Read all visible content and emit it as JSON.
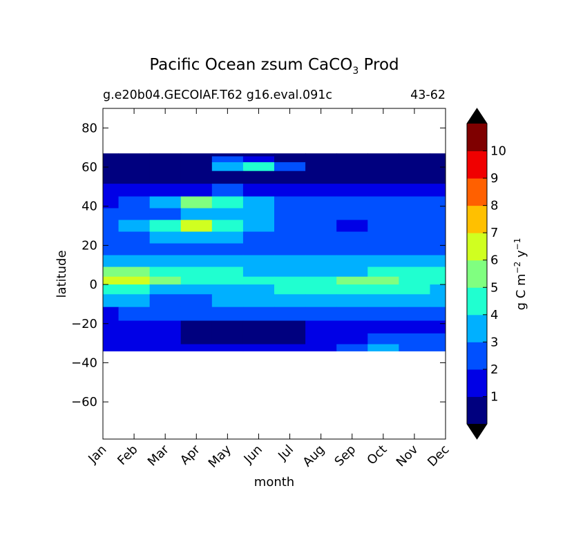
{
  "chart_data": {
    "type": "heatmap",
    "title_main": "Pacific Ocean zsum CaCO",
    "title_sub": "3",
    "title_tail": " Prod",
    "subtitle_left": "g.e20b04.GECOIAF.T62 g16.eval.091c",
    "subtitle_right": "43-62",
    "xlabel": "month",
    "ylabel": "latitude",
    "x_ticks": [
      "Jan",
      "Feb",
      "Mar",
      "Apr",
      "May",
      "Jun",
      "Jul",
      "Aug",
      "Sep",
      "Oct",
      "Nov",
      "Dec"
    ],
    "y_ticks": [
      80,
      60,
      40,
      20,
      0,
      -20,
      -40,
      -60
    ],
    "y_tick_labels": [
      "80",
      "60",
      "40",
      "20",
      "0",
      "−20",
      "−40",
      "−60"
    ],
    "ylim": [
      -79,
      90
    ],
    "data_lat_range": [
      -34,
      67
    ],
    "colorbar": {
      "label_main": "g C m",
      "label_exp1": "−2",
      "label_mid": " y",
      "label_exp2": "−1",
      "levels": [
        0,
        1,
        2,
        3,
        4,
        5,
        6,
        7,
        8,
        9,
        10,
        11
      ],
      "tick_labels": [
        "1",
        "2",
        "3",
        "4",
        "5",
        "6",
        "7",
        "8",
        "9",
        "10"
      ],
      "colors": [
        "#00007f",
        "#0000e6",
        "#0050ff",
        "#00b0ff",
        "#20ffd0",
        "#80ff80",
        "#d0ff20",
        "#ffc000",
        "#ff6000",
        "#f00000",
        "#7f0000"
      ],
      "extend": "both",
      "under_color": "#000000",
      "over_color": "#000000"
    },
    "field": [
      {
        "lat": 67,
        "values": [
          0,
          0,
          0,
          0,
          0,
          0,
          0,
          0,
          0,
          0,
          0,
          0
        ]
      },
      {
        "lat": 64,
        "values": [
          0,
          0,
          0,
          0,
          2,
          1,
          0,
          0,
          0,
          0,
          0,
          0
        ]
      },
      {
        "lat": 61,
        "values": [
          0,
          0,
          0,
          0,
          3,
          4,
          2,
          0,
          0,
          0,
          0,
          0
        ]
      },
      {
        "lat": 55,
        "values": [
          0,
          0,
          0,
          0,
          0,
          0,
          0,
          0,
          0,
          0,
          0,
          0
        ]
      },
      {
        "lat": 48,
        "values": [
          1,
          1,
          1,
          1,
          2,
          1,
          1,
          1,
          1,
          1,
          1,
          1
        ]
      },
      {
        "lat": 42,
        "values": [
          1,
          2,
          3,
          5,
          4,
          3,
          2,
          2,
          2,
          2,
          2,
          2
        ]
      },
      {
        "lat": 36,
        "values": [
          2,
          2,
          2,
          3,
          3,
          3,
          2,
          2,
          2,
          2,
          2,
          2
        ]
      },
      {
        "lat": 30,
        "values": [
          2,
          3,
          4,
          6,
          4,
          3,
          2,
          2,
          1,
          2,
          2,
          2
        ]
      },
      {
        "lat": 24,
        "values": [
          2,
          2,
          3,
          3,
          3,
          2,
          2,
          2,
          2,
          2,
          2,
          2
        ]
      },
      {
        "lat": 18,
        "values": [
          2,
          2,
          2,
          2,
          2,
          2,
          2,
          2,
          2,
          2,
          2,
          2
        ]
      },
      {
        "lat": 12,
        "values": [
          3,
          3,
          3,
          3,
          3,
          3,
          3,
          3,
          3,
          3,
          3,
          3
        ]
      },
      {
        "lat": 6,
        "values": [
          5,
          5,
          4,
          4,
          4,
          3,
          3,
          3,
          3,
          4,
          4,
          4
        ]
      },
      {
        "lat": 2,
        "values": [
          6,
          6,
          5,
          4,
          4,
          4,
          4,
          4,
          5,
          5,
          4,
          4
        ]
      },
      {
        "lat": -2,
        "values": [
          4,
          4,
          3,
          3,
          3,
          3,
          4,
          4,
          4,
          4,
          4,
          3
        ]
      },
      {
        "lat": -8,
        "values": [
          3,
          3,
          2,
          2,
          3,
          3,
          3,
          3,
          3,
          3,
          3,
          3
        ]
      },
      {
        "lat": -15,
        "values": [
          1,
          2,
          2,
          2,
          2,
          2,
          2,
          2,
          2,
          2,
          2,
          2
        ]
      },
      {
        "lat": -22,
        "values": [
          1,
          1,
          1,
          0,
          0,
          0,
          0,
          1,
          1,
          1,
          1,
          1
        ]
      },
      {
        "lat": -28,
        "values": [
          1,
          1,
          1,
          0,
          0,
          0,
          0,
          1,
          1,
          2,
          2,
          2
        ]
      },
      {
        "lat": -33,
        "values": [
          1,
          1,
          1,
          1,
          1,
          1,
          1,
          1,
          2,
          3,
          2,
          2
        ]
      }
    ]
  }
}
